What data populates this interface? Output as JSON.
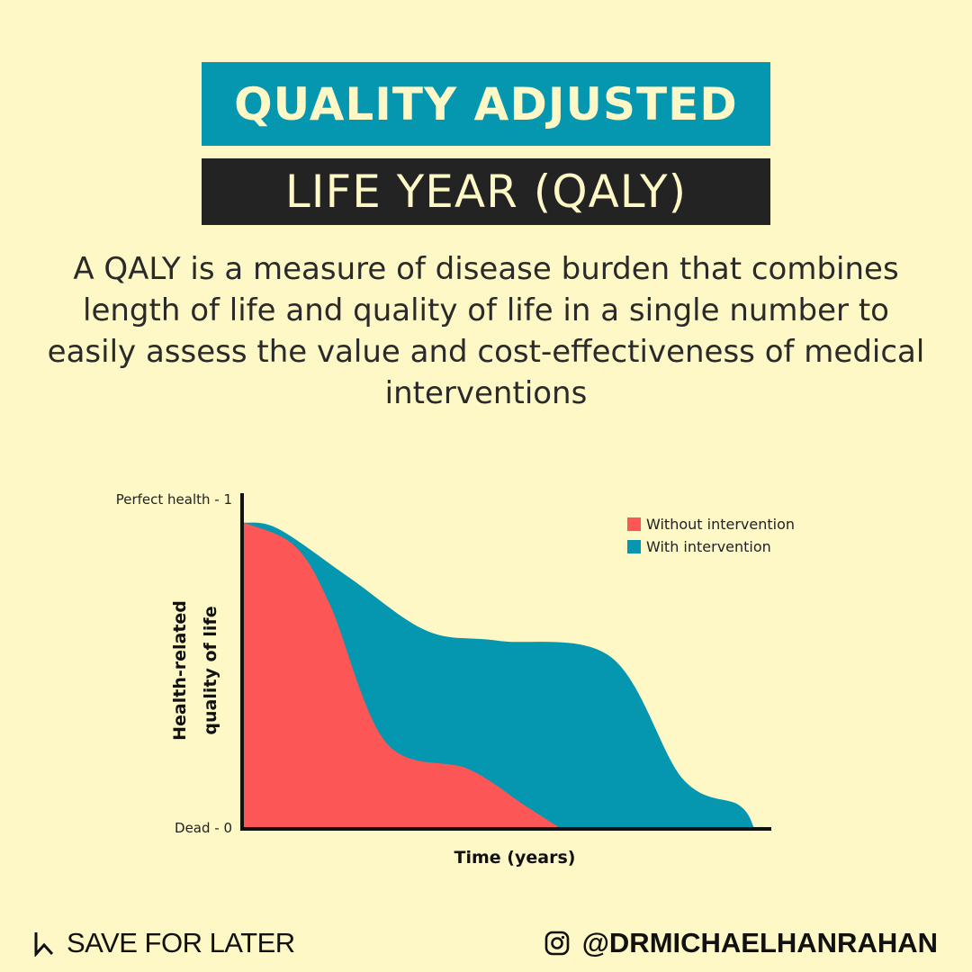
{
  "header": {
    "title_line1": "QUALITY ADJUSTED",
    "title_line2": "LIFE YEAR (QALY)"
  },
  "description": "A QALY is a measure of disease burden that combines length of life and quality of life in a single number to easily assess the value and cost-effectiveness of medical interventions",
  "colors": {
    "background": "#fdf8c6",
    "accent": "#0596b0",
    "dark": "#232323",
    "without": "#fd5656",
    "with": "#0596b0"
  },
  "chart_data": {
    "type": "area",
    "title": "",
    "xlabel": "Time (years)",
    "ylabel_lines": [
      "Health-related",
      "quality of life"
    ],
    "y_tick_labels": [
      {
        "value": 1,
        "label": "Perfect health - 1"
      },
      {
        "value": 0,
        "label": "Dead - 0"
      }
    ],
    "xlim": [
      0,
      1
    ],
    "ylim": [
      0,
      1
    ],
    "legend_position": "top-right",
    "series": [
      {
        "name": "With intervention",
        "color": "#0596b0",
        "points": [
          [
            0,
            0.93
          ],
          [
            0.07,
            0.91
          ],
          [
            0.21,
            0.76
          ],
          [
            0.36,
            0.6
          ],
          [
            0.5,
            0.57
          ],
          [
            0.72,
            0.52
          ],
          [
            0.86,
            0.15
          ],
          [
            0.97,
            0.07
          ],
          [
            1.0,
            0.0
          ]
        ]
      },
      {
        "name": "Without intervention",
        "color": "#fd5656",
        "points": [
          [
            0,
            0.93
          ],
          [
            0.1,
            0.86
          ],
          [
            0.17,
            0.68
          ],
          [
            0.28,
            0.26
          ],
          [
            0.44,
            0.18
          ],
          [
            0.55,
            0.07
          ],
          [
            0.62,
            0.0
          ]
        ]
      }
    ]
  },
  "footer": {
    "save_label": "SAVE FOR LATER",
    "handle": "@DRMICHAELHANRAHAN",
    "save_icon": "bookmark-icon",
    "social_icon": "instagram-icon"
  }
}
